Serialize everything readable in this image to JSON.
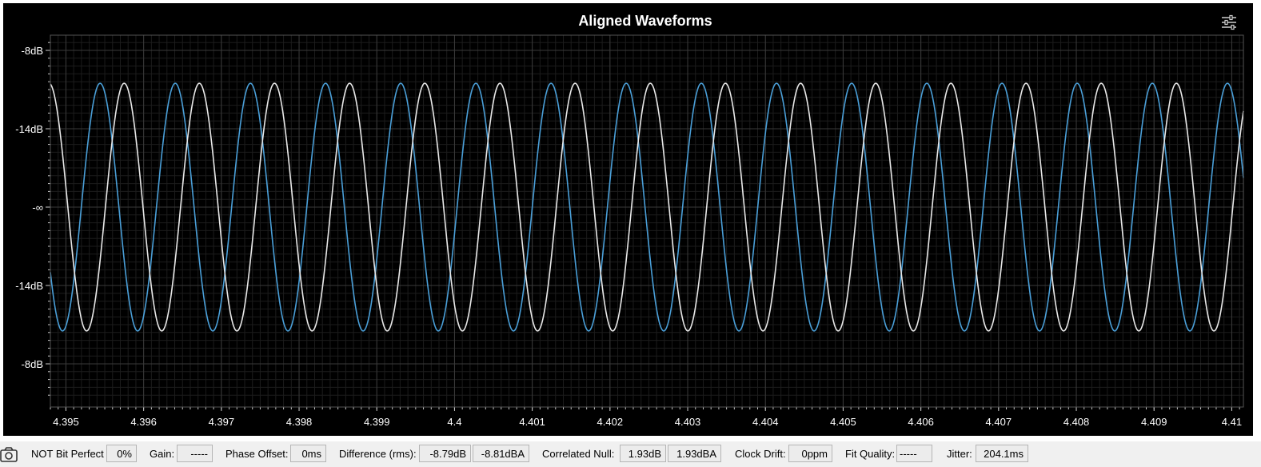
{
  "chart_data": {
    "type": "line",
    "title": "Aligned Waveforms",
    "xlim": [
      4.3948,
      4.41015
    ],
    "x_ticks": [
      "4.395",
      "4.396",
      "4.397",
      "4.398",
      "4.399",
      "4.4",
      "4.401",
      "4.402",
      "4.403",
      "4.404",
      "4.405",
      "4.406",
      "4.407",
      "4.408",
      "4.409",
      "4.41"
    ],
    "x_tick_values": [
      4.395,
      4.396,
      4.397,
      4.398,
      4.399,
      4.4,
      4.401,
      4.402,
      4.403,
      4.404,
      4.405,
      4.406,
      4.407,
      4.408,
      4.409,
      4.41
    ],
    "y_ticks": [
      "-8dB",
      "-14dB",
      "-∞",
      "-14dB",
      "-8dB"
    ],
    "y_tick_values": [
      1.0,
      0.5,
      0.0,
      -0.5,
      -1.0
    ],
    "ylim": [
      -1.25,
      1.0
    ],
    "grid": true,
    "series": [
      {
        "color": "#4a9fd8",
        "amplitude": 0.79,
        "period": 0.000967,
        "first_peak_x": 4.39544
      },
      {
        "color": "#e8e8e8",
        "amplitude": 0.79,
        "period": 0.000967,
        "first_peak_x": 4.39575
      }
    ]
  },
  "status": {
    "bit_perfect_label": "NOT Bit Perfect",
    "bit_perfect_value": "0%",
    "gain_label": "Gain:",
    "gain_value": "-----",
    "phase_label": "Phase Offset:",
    "phase_value": "0ms",
    "difference_label": "Difference (rms):",
    "difference_db": "-8.79dB",
    "difference_dba": "-8.81dBA",
    "null_label": "Correlated Null:",
    "null_db": "1.93dB",
    "null_dba": "1.93dBA",
    "drift_label": "Clock Drift:",
    "drift_value": "0ppm",
    "fit_label": "Fit Quality:",
    "fit_value": "-----",
    "jitter_label": "Jitter:",
    "jitter_value": "204.1ms"
  },
  "icons": {
    "settings": "sliders-icon",
    "camera": "camera-icon"
  },
  "colors": {
    "background": "#000000",
    "grid_major": "#3a3a3a",
    "grid_minor": "#1c1c1c",
    "axis": "#c8c8c8",
    "text": "#ffffff"
  }
}
